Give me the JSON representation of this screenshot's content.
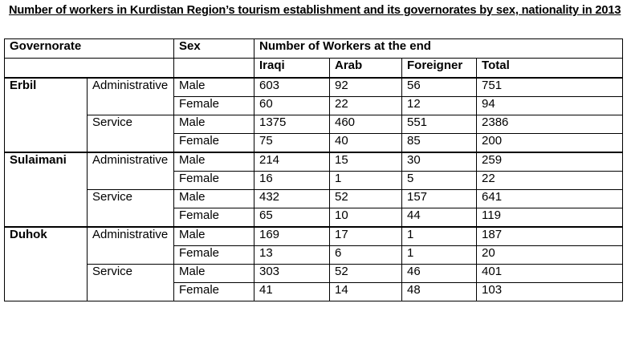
{
  "title": "Number of workers in Kurdistan Region’s tourism establishment and its governorates by sex, nationality in 2013",
  "header": {
    "governorate": "Governorate",
    "sex": "Sex",
    "number_of_workers": "Number of Workers at the end",
    "iraqi": "Iraqi",
    "arab": "Arab",
    "foreigner": "Foreigner",
    "total": "Total"
  },
  "rows": [
    {
      "gov": "Erbil",
      "type": "Administrative",
      "sex": "Male",
      "iraqi": "603",
      "arab": "92",
      "foreigner": "56",
      "total": "751"
    },
    {
      "gov": "",
      "type": "",
      "sex": "Female",
      "iraqi": "60",
      "arab": "22",
      "foreigner": "12",
      "total": "94"
    },
    {
      "gov": "",
      "type": "Service",
      "sex": "Male",
      "iraqi": "1375",
      "arab": "460",
      "foreigner": "551",
      "total": "2386"
    },
    {
      "gov": "",
      "type": "",
      "sex": "Female",
      "iraqi": "75",
      "arab": "40",
      "foreigner": "85",
      "total": "200"
    },
    {
      "gov": "Sulaimani",
      "type": "Administrative",
      "sex": "Male",
      "iraqi": "214",
      "arab": "15",
      "foreigner": "30",
      "total": "259"
    },
    {
      "gov": "",
      "type": "",
      "sex": "Female",
      "iraqi": "16",
      "arab": "1",
      "foreigner": "5",
      "total": "22"
    },
    {
      "gov": "",
      "type": "Service",
      "sex": "Male",
      "iraqi": "432",
      "arab": "52",
      "foreigner": "157",
      "total": "641"
    },
    {
      "gov": "",
      "type": "",
      "sex": "Female",
      "iraqi": "65",
      "arab": "10",
      "foreigner": "44",
      "total": "119"
    },
    {
      "gov": "Duhok",
      "type": "Administrative",
      "sex": "Male",
      "iraqi": "169",
      "arab": "17",
      "foreigner": "1",
      "total": "187"
    },
    {
      "gov": "",
      "type": "",
      "sex": "Female",
      "iraqi": "13",
      "arab": "6",
      "foreigner": "1",
      "total": "20"
    },
    {
      "gov": "",
      "type": "Service",
      "sex": "Male",
      "iraqi": "303",
      "arab": "52",
      "foreigner": "46",
      "total": "401"
    },
    {
      "gov": "",
      "type": "",
      "sex": "Female",
      "iraqi": "41",
      "arab": "14",
      "foreigner": "48",
      "total": "103"
    }
  ]
}
